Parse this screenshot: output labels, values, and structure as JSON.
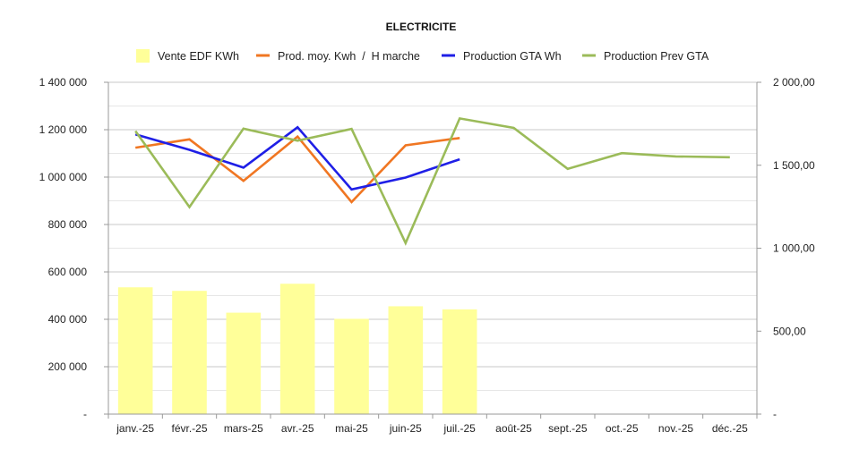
{
  "chart_data": {
    "type": "bar",
    "title": "ELECTRICITE",
    "categories": [
      "janv.-25",
      "févr.-25",
      "mars-25",
      "avr.-25",
      "mai-25",
      "juin-25",
      "juil.-25",
      "août-25",
      "sept.-25",
      "oct.-25",
      "nov.-25",
      "déc.-25"
    ],
    "left_axis": {
      "min": 0,
      "max": 1400000,
      "ticks": [
        0,
        200000,
        400000,
        600000,
        800000,
        1000000,
        1200000,
        1400000
      ],
      "tick_labels": [
        "-",
        "200 000",
        "400 000",
        "600 000",
        "800 000",
        "1 000 000",
        "1 200 000",
        "1 400 000"
      ]
    },
    "right_axis": {
      "min": 0,
      "max": 2000,
      "ticks": [
        0,
        500,
        1000,
        1500,
        2000
      ],
      "tick_labels": [
        "-",
        "500,00",
        "1 000,00",
        "1 500,00",
        "2 000,00"
      ]
    },
    "grid": true,
    "legend_position": "top",
    "series": [
      {
        "name": "Vente EDF KWh",
        "kind": "bar",
        "axis": "left",
        "color": "#ffff99",
        "values": [
          535000,
          520000,
          428000,
          550000,
          402000,
          455000,
          442000,
          null,
          null,
          null,
          null,
          null
        ]
      },
      {
        "name": "Prod. moy. Kwh  /  H marche",
        "kind": "line",
        "axis": "right",
        "color": "#f07622",
        "values": [
          1606,
          1656,
          1406,
          1673,
          1278,
          1620,
          1664,
          null,
          null,
          null,
          null,
          null
        ]
      },
      {
        "name": "Production GTA Wh",
        "kind": "line",
        "axis": "left",
        "color": "#1f1fe6",
        "values": [
          1180000,
          1115000,
          1040000,
          1210000,
          948000,
          998000,
          1075000,
          null,
          null,
          null,
          null,
          null
        ]
      },
      {
        "name": "Production Prev GTA",
        "kind": "line",
        "axis": "right",
        "color": "#9bbb59",
        "values": [
          1706,
          1248,
          1721,
          1648,
          1719,
          1031,
          1782,
          1725,
          1478,
          1573,
          1553,
          1548
        ]
      }
    ]
  }
}
